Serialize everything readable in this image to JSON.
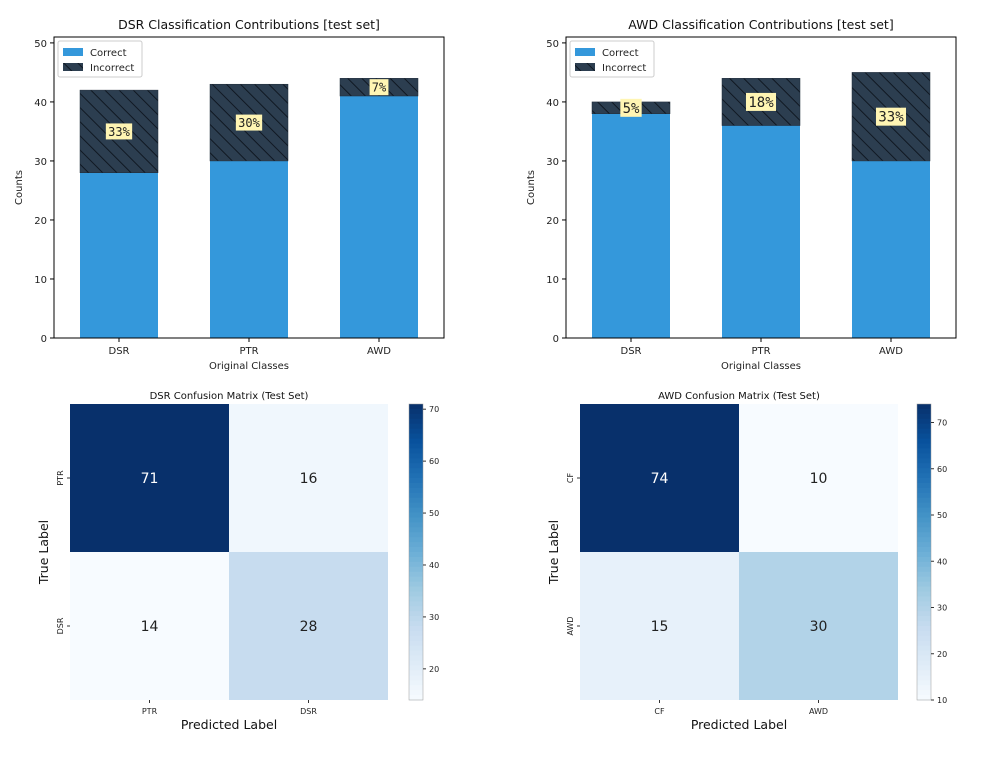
{
  "colors": {
    "correct": "#3498db",
    "incorrect": "#2c3e50",
    "hatch": "#151f2b",
    "label_box": "#fff5b3",
    "cmap_low": "#f7fbff",
    "cmap_high": "#08306b"
  },
  "chart_data": [
    {
      "type": "bar",
      "stacked": true,
      "title": "DSR Classification Contributions [test set]",
      "xlabel": "Original Classes",
      "ylabel": "Counts",
      "categories": [
        "DSR",
        "PTR",
        "AWD"
      ],
      "series": [
        {
          "name": "Correct",
          "values": [
            28,
            30,
            41
          ]
        },
        {
          "name": "Incorrect",
          "values": [
            14,
            13,
            3
          ]
        }
      ],
      "percent_labels": [
        "33%",
        "30%",
        "7%"
      ],
      "ylim": [
        0,
        51
      ],
      "yticks": [
        0,
        10,
        20,
        30,
        40,
        50
      ],
      "legend": "top-left"
    },
    {
      "type": "bar",
      "stacked": true,
      "title": "AWD Classification Contributions [test set]",
      "xlabel": "Original Classes",
      "ylabel": "Counts",
      "categories": [
        "DSR",
        "PTR",
        "AWD"
      ],
      "series": [
        {
          "name": "Correct",
          "values": [
            38,
            36,
            30
          ]
        },
        {
          "name": "Incorrect",
          "values": [
            2,
            8,
            15
          ]
        }
      ],
      "percent_labels": [
        "5%",
        "18%",
        "33%"
      ],
      "ylim": [
        0,
        51
      ],
      "yticks": [
        0,
        10,
        20,
        30,
        40,
        50
      ],
      "legend": "top-left"
    },
    {
      "type": "heatmap",
      "title": "DSR Confusion Matrix (Test Set)",
      "xlabel": "Predicted Label",
      "ylabel": "True Label",
      "x_categories": [
        "PTR",
        "DSR"
      ],
      "y_categories": [
        "PTR",
        "DSR"
      ],
      "values": [
        [
          71,
          16
        ],
        [
          14,
          28
        ]
      ],
      "vmin": 14,
      "vmax": 71,
      "colorbar_ticks": [
        20,
        30,
        40,
        50,
        60,
        70
      ]
    },
    {
      "type": "heatmap",
      "title": "AWD Confusion Matrix (Test Set)",
      "xlabel": "Predicted Label",
      "ylabel": "True Label",
      "x_categories": [
        "CF",
        "AWD"
      ],
      "y_categories": [
        "CF",
        "AWD"
      ],
      "values": [
        [
          74,
          10
        ],
        [
          15,
          30
        ]
      ],
      "vmin": 10,
      "vmax": 74,
      "colorbar_ticks": [
        10,
        20,
        30,
        40,
        50,
        60,
        70
      ]
    }
  ]
}
